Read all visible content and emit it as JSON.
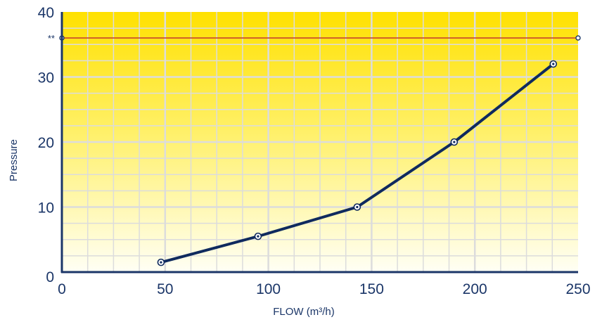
{
  "chart_data": {
    "type": "line",
    "title": "",
    "xlabel": "FLOW (m³/h)",
    "ylabel": "Pressure",
    "xlim": [
      0,
      250
    ],
    "ylim": [
      0,
      40
    ],
    "x_ticks": [
      "0",
      "50",
      "100",
      "150",
      "200",
      "250"
    ],
    "y_ticks": [
      "0",
      "10",
      "20",
      "30",
      "40"
    ],
    "grid": true,
    "series": [
      {
        "x": [
          48,
          95,
          143,
          190,
          238
        ],
        "y": [
          1.5,
          5.5,
          10,
          20,
          32
        ]
      }
    ],
    "reference_line": {
      "y": 36,
      "label": "**"
    },
    "colors": {
      "background_top": "#ffe100",
      "background_bottom": "#fffff5",
      "grid": "#dcdcdc",
      "axis": "#1b3668",
      "series": "#0f2a5e",
      "reference_line": "#c0392b"
    }
  }
}
